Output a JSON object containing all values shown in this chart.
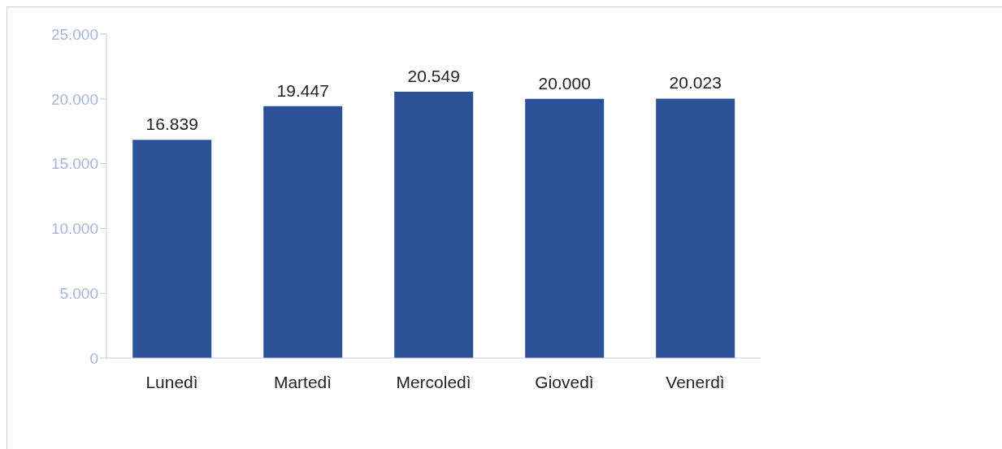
{
  "chart_data": {
    "type": "bar",
    "categories": [
      "Lunedì",
      "Martedì",
      "Mercoledì",
      "Giovedì",
      "Venerdì"
    ],
    "values": [
      16839,
      19447,
      20549,
      20000,
      20023
    ],
    "value_labels": [
      "16.839",
      "19.447",
      "20.549",
      "20.000",
      "20.023"
    ],
    "color": "#2b5296",
    "ylim": [
      0,
      25000
    ],
    "yticks": [
      {
        "value": 0,
        "label": "0"
      },
      {
        "value": 5000,
        "label": "5.000"
      },
      {
        "value": 10000,
        "label": "10.000"
      },
      {
        "value": 15000,
        "label": "15.000"
      },
      {
        "value": 20000,
        "label": "20.000"
      },
      {
        "value": 25000,
        "label": "25.000"
      }
    ],
    "grid": false,
    "legend": false
  }
}
